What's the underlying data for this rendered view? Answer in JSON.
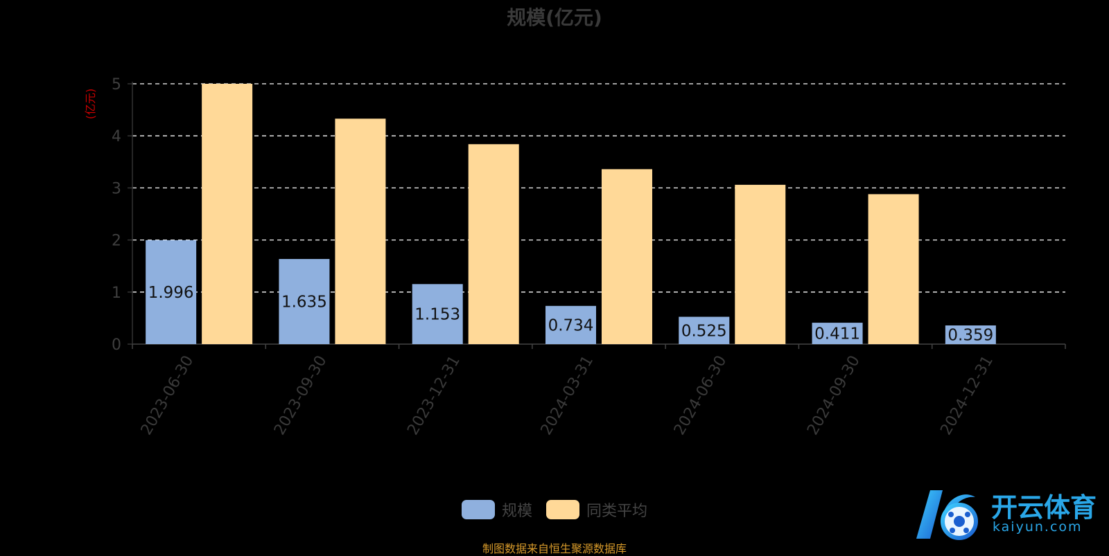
{
  "chart_data": {
    "type": "bar",
    "title": "规模(亿元)",
    "ylabel": "(亿元)",
    "xlabel": "",
    "ylim": [
      0,
      5
    ],
    "yticks": [
      "0",
      "1",
      "2",
      "3",
      "4",
      "5"
    ],
    "categories": [
      "2023-06-30",
      "2023-09-30",
      "2023-12-31",
      "2024-03-31",
      "2024-06-30",
      "2024-09-30",
      "2024-12-31"
    ],
    "series": [
      {
        "name": "规模",
        "color": "#8fb0de",
        "values": [
          1.996,
          1.635,
          1.153,
          0.734,
          0.525,
          0.411,
          0.359
        ],
        "labels": [
          "1.996",
          "1.635",
          "1.153",
          "0.734",
          "0.525",
          "0.411",
          "0.359"
        ]
      },
      {
        "name": "同类平均",
        "color": "#ffd998",
        "values": [
          5.0,
          4.33,
          3.84,
          3.36,
          3.06,
          2.88,
          null
        ]
      }
    ],
    "grid": true,
    "legend_position": "bottom-center"
  },
  "source_text": "制图数据来自恒生聚源数据库",
  "logo": {
    "name": "开云体育",
    "domain": "kaiyun.com"
  }
}
